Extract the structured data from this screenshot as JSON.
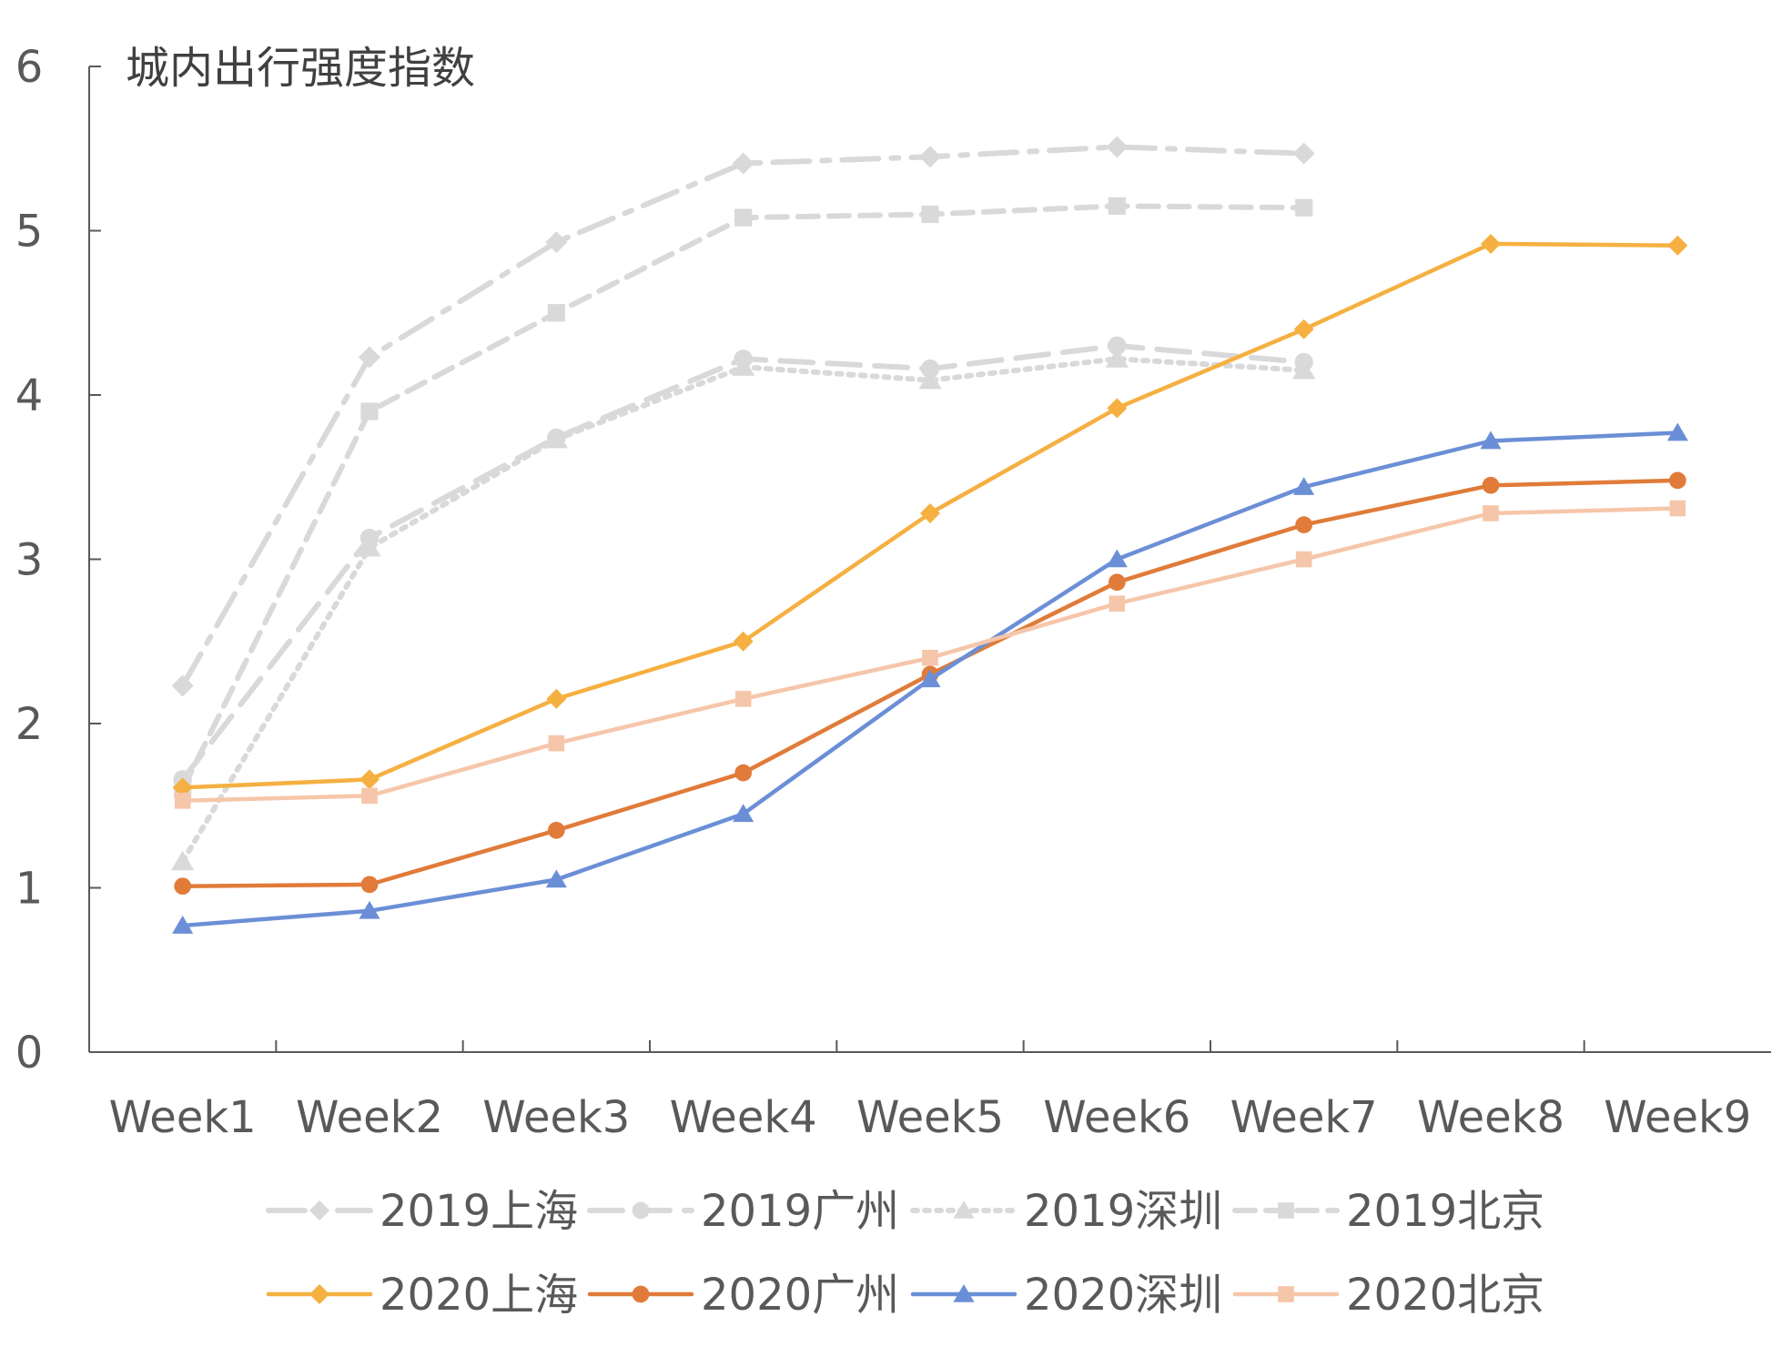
{
  "chart_data": {
    "type": "line",
    "title": "城内出行强度指数",
    "categories": [
      "Week1",
      "Week2",
      "Week3",
      "Week4",
      "Week5",
      "Week6",
      "Week7",
      "Week8",
      "Week9"
    ],
    "ylim": [
      0,
      6
    ],
    "yticks": [
      0,
      1,
      2,
      3,
      4,
      5,
      6
    ],
    "grid": false,
    "legend_position": "bottom",
    "series": [
      {
        "name": "2019上海",
        "values": [
          2.23,
          4.23,
          4.93,
          5.41,
          5.45,
          5.51,
          5.47,
          null,
          null
        ],
        "color": "#d9d9d9",
        "marker": "diamond",
        "dash": "long-dash-dot"
      },
      {
        "name": "2019广州",
        "values": [
          1.66,
          3.13,
          3.74,
          4.22,
          4.16,
          4.3,
          4.2,
          null,
          null
        ],
        "color": "#d9d9d9",
        "marker": "circle",
        "dash": "long-dash"
      },
      {
        "name": "2019深圳",
        "values": [
          1.16,
          3.07,
          3.73,
          4.17,
          4.09,
          4.22,
          4.15,
          null,
          null
        ],
        "color": "#d9d9d9",
        "marker": "triangle",
        "dash": "dot"
      },
      {
        "name": "2019北京",
        "values": [
          1.6,
          3.9,
          4.5,
          5.08,
          5.1,
          5.15,
          5.14,
          null,
          null
        ],
        "color": "#d9d9d9",
        "marker": "square",
        "dash": "dash"
      },
      {
        "name": "2020上海",
        "values": [
          1.61,
          1.66,
          2.15,
          2.5,
          3.28,
          3.92,
          4.4,
          4.92,
          4.91
        ],
        "color": "#f5b041",
        "marker": "diamond",
        "dash": "solid"
      },
      {
        "name": "2020广州",
        "values": [
          1.01,
          1.02,
          1.35,
          1.7,
          2.3,
          2.86,
          3.21,
          3.45,
          3.48
        ],
        "color": "#e07b39",
        "marker": "circle",
        "dash": "solid"
      },
      {
        "name": "2020深圳",
        "values": [
          0.77,
          0.86,
          1.05,
          1.45,
          2.27,
          3.0,
          3.44,
          3.72,
          3.77
        ],
        "color": "#6b8fd6",
        "marker": "triangle",
        "dash": "solid"
      },
      {
        "name": "2020北京",
        "values": [
          1.53,
          1.56,
          1.88,
          2.15,
          2.4,
          2.73,
          3.0,
          3.28,
          3.31
        ],
        "color": "#f6c6aa",
        "marker": "square",
        "dash": "solid"
      }
    ]
  }
}
